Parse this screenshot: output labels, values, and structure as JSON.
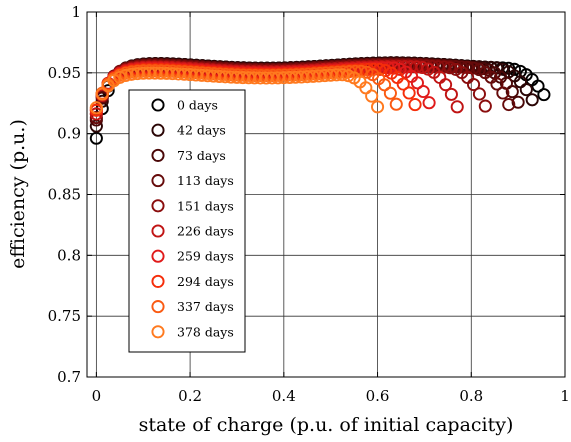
{
  "chart_data": {
    "type": "scatter",
    "title": "",
    "xlabel": "state of charge (p.u. of initial capacity)",
    "ylabel": "efficiency (p.u.)",
    "xlim": [
      -0.02,
      1.0
    ],
    "ylim": [
      0.7,
      1.0
    ],
    "grid": true,
    "legend_position": "left",
    "marker": "open-circle",
    "xticks": [
      0,
      0.2,
      0.4,
      0.6,
      0.8,
      1
    ],
    "xtick_labels": [
      "0",
      "0.2",
      "0.4",
      "0.6",
      "0.8",
      "1"
    ],
    "yticks": [
      0.7,
      0.75,
      0.8,
      0.85,
      0.9,
      0.95,
      1
    ],
    "ytick_labels": [
      "0.7",
      "0.75",
      "0.8",
      "0.85",
      "0.9",
      "0.95",
      "1"
    ],
    "series": [
      {
        "name": "0 days",
        "color": "#000000",
        "max_soc": 0.955,
        "end_eff": 0.934,
        "start_eff": 0.895,
        "plateau_eff": 0.956
      },
      {
        "name": "42 days",
        "color": "#2a0505",
        "max_soc": 0.93,
        "end_eff": 0.93,
        "start_eff": 0.905,
        "plateau_eff": 0.956
      },
      {
        "name": "73 days",
        "color": "#4a0707",
        "max_soc": 0.9,
        "end_eff": 0.928,
        "start_eff": 0.91,
        "plateau_eff": 0.955
      },
      {
        "name": "113 days",
        "color": "#660a0a",
        "max_soc": 0.88,
        "end_eff": 0.926,
        "start_eff": 0.912,
        "plateau_eff": 0.955
      },
      {
        "name": "151 days",
        "color": "#8a0d0d",
        "max_soc": 0.83,
        "end_eff": 0.924,
        "start_eff": 0.915,
        "plateau_eff": 0.954
      },
      {
        "name": "226 days",
        "color": "#c01414",
        "max_soc": 0.77,
        "end_eff": 0.922,
        "start_eff": 0.915,
        "plateau_eff": 0.953
      },
      {
        "name": "259 days",
        "color": "#e01a1a",
        "max_soc": 0.71,
        "end_eff": 0.924,
        "start_eff": 0.918,
        "plateau_eff": 0.952
      },
      {
        "name": "294 days",
        "color": "#f52d0a",
        "max_soc": 0.68,
        "end_eff": 0.922,
        "start_eff": 0.918,
        "plateau_eff": 0.951
      },
      {
        "name": "337 days",
        "color": "#fa5a12",
        "max_soc": 0.64,
        "end_eff": 0.922,
        "start_eff": 0.92,
        "plateau_eff": 0.95
      },
      {
        "name": "378 days",
        "color": "#ff7a1f",
        "max_soc": 0.6,
        "end_eff": 0.92,
        "start_eff": 0.92,
        "plateau_eff": 0.948
      }
    ]
  }
}
